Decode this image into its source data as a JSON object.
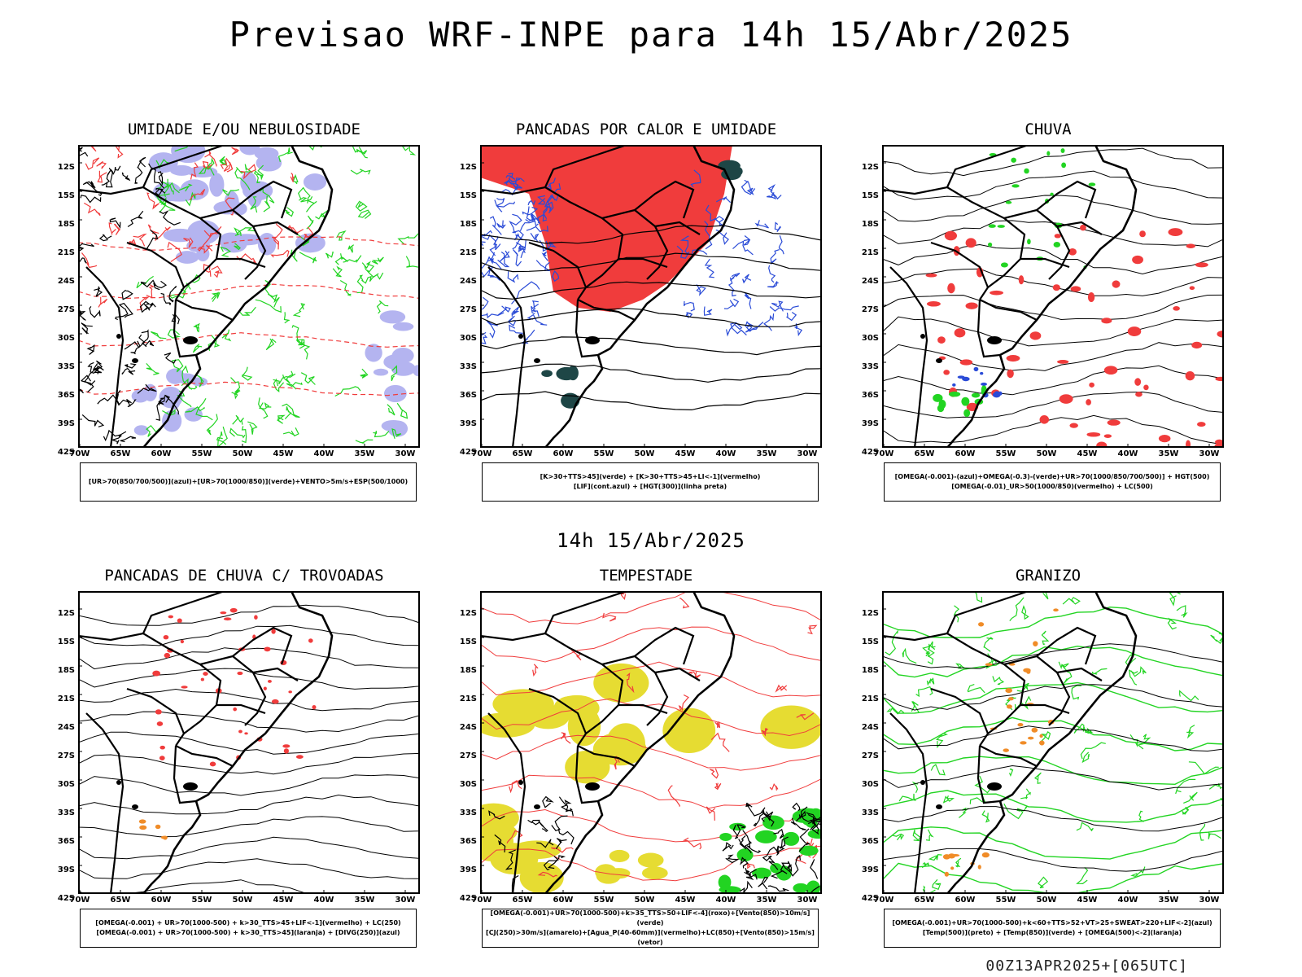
{
  "title": "Previsao WRF-INPE  para 14h 15/Abr/2025",
  "subtitle": "14h 15/Abr/2025",
  "footer": "00Z13APR2025+[065UTC]",
  "lat_labels": [
    "12S",
    "15S",
    "18S",
    "21S",
    "24S",
    "27S",
    "30S",
    "33S",
    "36S",
    "39S",
    "42S"
  ],
  "lon_labels": [
    "70W",
    "65W",
    "60W",
    "55W",
    "50W",
    "45W",
    "40W",
    "35W",
    "30W"
  ],
  "colors": {
    "red": "#f03c3c",
    "green": "#22d422",
    "blue": "#2a4bd7",
    "lavender": "#b4b4f0",
    "yellow": "#e6dc32",
    "orange": "#f08c28",
    "darkteal": "#1e4646"
  },
  "panels": [
    {
      "title": "UMIDADE E/OU NEBULOSIDADE",
      "legend": [
        "[UR>70(850/700/500)](azul)+[UR>70(1000/850)](verde)+VENTO>5m/s+ESP(500/1000)"
      ]
    },
    {
      "title": "PANCADAS POR CALOR E UMIDADE",
      "legend": [
        "[K>30+TTS>45](verde) + [K>30+TTS>45+LI<-1](vermelho)",
        "[LIF](cont.azul) + [HGT(300)](linha preta)"
      ]
    },
    {
      "title": "CHUVA",
      "legend": [
        "[OMEGA(-0.001)-(azul)+OMEGA(-0.3)-(verde)+UR>70(1000/850/700/500)] + HGT(500)",
        "[OMEGA(-0.01)_UR>50(1000/850)(vermelho) + LC(500)"
      ]
    },
    {
      "title": "PANCADAS DE CHUVA C/ TROVOADAS",
      "legend": [
        "[OMEGA(-0.001) + UR>70(1000-500) + k>30_TTS>45+LIF<-1](vermelho) + LC(250)",
        "[OMEGA(-0.001) + UR>70(1000-500) + k>30_TTS>45](laranja) + [DIVG(250)](azul)"
      ]
    },
    {
      "title": "TEMPESTADE",
      "legend": [
        "[OMEGA(-0.001)+UR>70(1000-500)+k>35_TTS>50+LIF<-4](roxo)+[Vento(850)>10m/s](verde)",
        "[CJ(250)>30m/s](amarelo)+[Agua_P(40-60mm)](vermelho)+LC(850)+[Vento(850)>15m/s](vetor)"
      ]
    },
    {
      "title": "GRANIZO",
      "legend": [
        "[OMEGA(-0.001)+UR>70(1000-500)+k<60+TTS>52+VT>25+SWEAT>220+LIF<-2](azul)",
        "[Temp(500)](preto) + [Temp(850)](verde) + [OMEGA(500)<-2](laranja)"
      ]
    }
  ]
}
